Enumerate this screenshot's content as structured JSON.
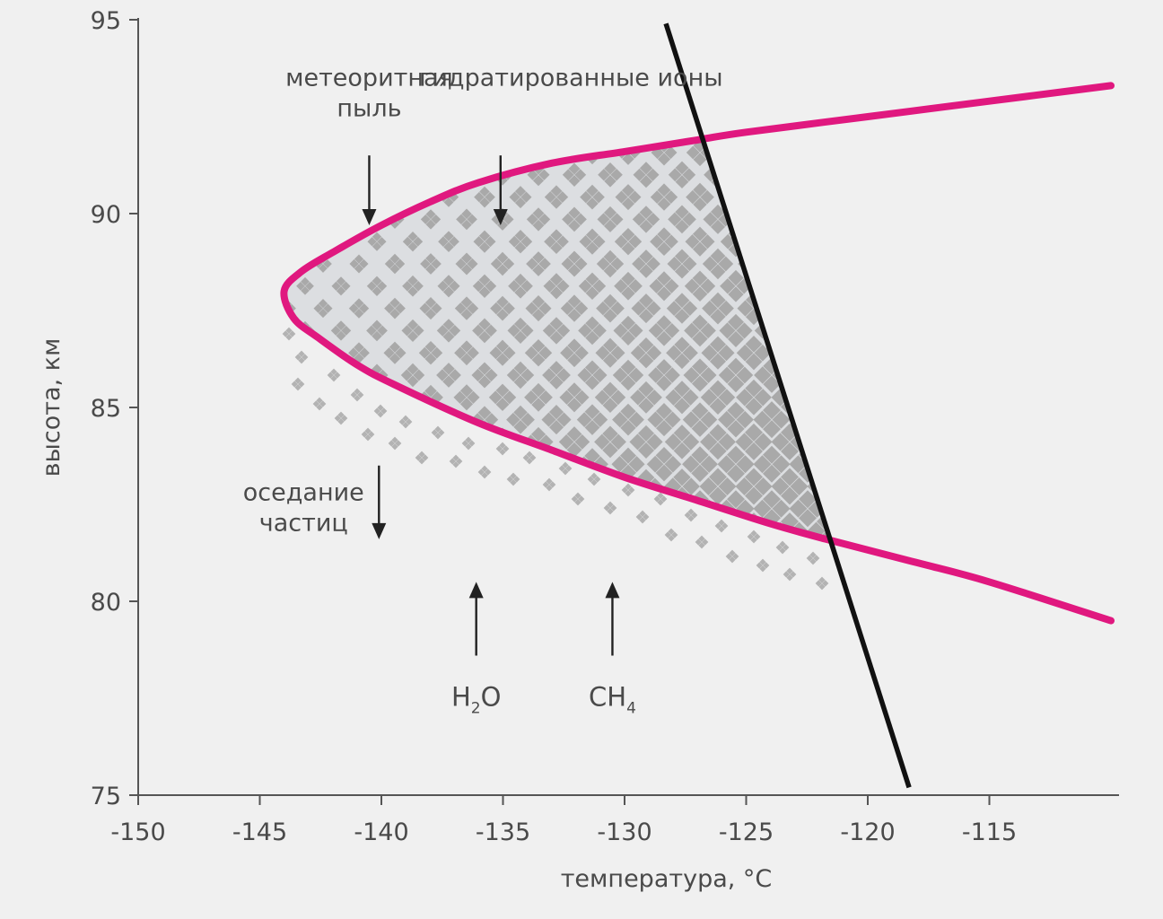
{
  "colors": {
    "background": "#f0f0f0",
    "boundary": "#e0187f",
    "line": "#111111",
    "cloud_fill": "#dcdee1",
    "diamond": "#a9a9a9",
    "axis": "#555555",
    "text": "#4a4a4a"
  },
  "chart_data": {
    "type": "line",
    "xlabel": "температура, °C",
    "ylabel": "высота, км",
    "xlim": [
      -150,
      -110
    ],
    "ylim": [
      75,
      95
    ],
    "xticks": [
      -150,
      -145,
      -140,
      -135,
      -130,
      -125,
      -120,
      -115
    ],
    "yticks": [
      75,
      80,
      85,
      90,
      95
    ],
    "grid": false,
    "series": [
      {
        "x": [
          -110,
          -115,
          -120,
          -125,
          -127,
          -130,
          -133,
          -136,
          -138,
          -140,
          -142,
          -143.3,
          -144,
          -143.6,
          -142.6,
          -141,
          -139.5,
          -136,
          -133,
          -130,
          -127,
          -124,
          -121.7,
          -118,
          -115,
          -110
        ],
        "y": [
          93.3,
          92.9,
          92.5,
          92.1,
          91.9,
          91.6,
          91.3,
          90.8,
          90.3,
          89.7,
          89.0,
          88.5,
          88.0,
          87.3,
          86.8,
          86.1,
          85.6,
          84.6,
          83.9,
          83.2,
          82.6,
          82.0,
          81.6,
          81.0,
          80.5,
          79.5
        ]
      },
      {
        "x": [
          -128.3,
          -118.3
        ],
        "y": [
          94.9,
          75.2
        ]
      }
    ],
    "annotations": [
      {
        "lines": [
          "метеоритная",
          "пыль"
        ],
        "x": -140.5,
        "y": 93.3,
        "arrow": "down",
        "arrow_from": [
          -140.5,
          91.5
        ],
        "arrow_to": [
          -140.5,
          89.7
        ]
      },
      {
        "lines": [
          "гидратированные ионы"
        ],
        "x": -132.2,
        "y": 93.3,
        "arrow": "down",
        "arrow_from": [
          -135.1,
          91.5
        ],
        "arrow_to": [
          -135.1,
          89.7
        ]
      },
      {
        "lines": [
          "оседание",
          "частиц"
        ],
        "x": -143.2,
        "y": 82.6,
        "arrow": "down",
        "arrow_from": [
          -140.1,
          83.5
        ],
        "arrow_to": [
          -140.1,
          81.6
        ]
      },
      {
        "label": "H",
        "sub": "2",
        "suffix": "O",
        "x": -136.1,
        "y": 77.3,
        "arrow": "up",
        "arrow_from": [
          -136.1,
          78.6
        ],
        "arrow_to": [
          -136.1,
          80.5
        ]
      },
      {
        "label": "CH",
        "sub": "4",
        "suffix": "",
        "x": -130.5,
        "y": 77.3,
        "arrow": "up",
        "arrow_from": [
          -130.5,
          78.6
        ],
        "arrow_to": [
          -130.5,
          80.5
        ]
      }
    ]
  }
}
